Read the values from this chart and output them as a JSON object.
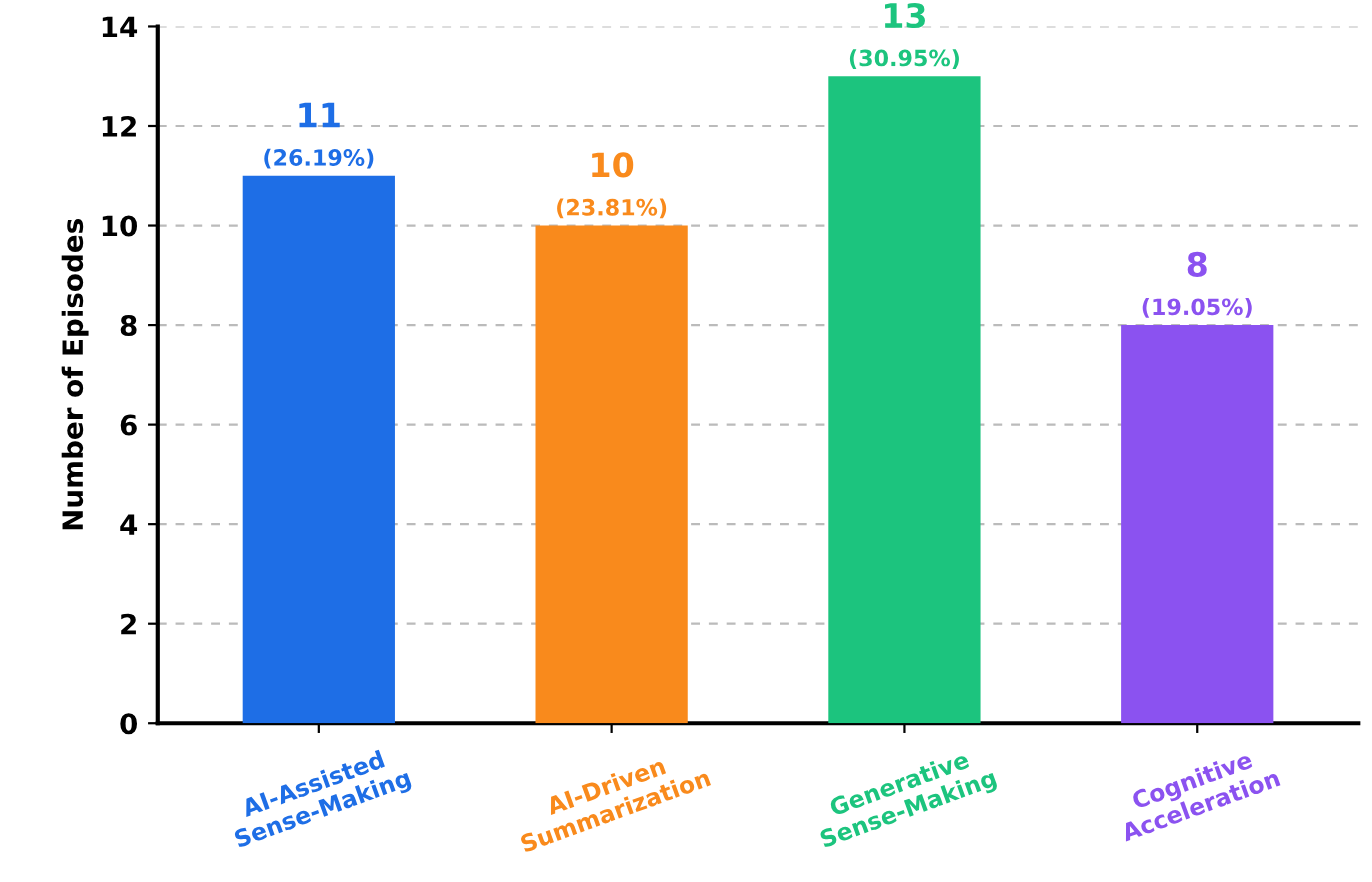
{
  "chart_data": {
    "type": "bar",
    "categories": [
      "AI-Assisted\nSense-Making",
      "AI-Driven\nSummarization",
      "Generative\nSense-Making",
      "Cognitive\nAcceleration"
    ],
    "values": [
      11,
      10,
      13,
      8
    ],
    "colors": [
      "#1e6ee6",
      "#f98a1c",
      "#1cc47e",
      "#8b52f0"
    ],
    "value_labels": [
      "11\n(26.19%)",
      "10\n(23.81%)",
      "13\n(30.95%)",
      "8\n(19.05%)"
    ],
    "ylabel": "Number of Episodes",
    "ylim": [
      0,
      14
    ],
    "yticks": [
      0,
      2,
      4,
      6,
      8,
      10,
      12,
      14
    ],
    "grid": "y",
    "legend": false
  }
}
